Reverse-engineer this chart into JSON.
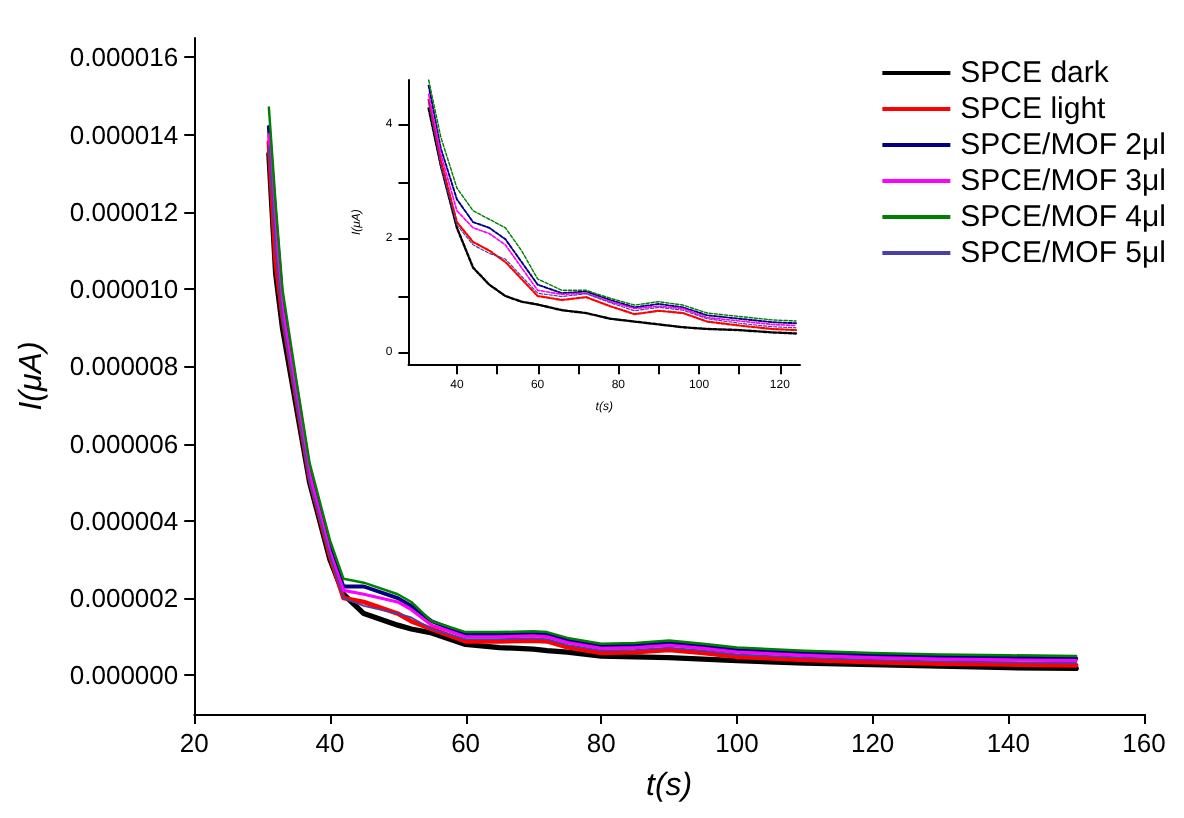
{
  "chart_data": [
    {
      "type": "line",
      "xlabel": "t(s)",
      "ylabel": "I(μA)",
      "legend": "top right",
      "grid": false,
      "x": [
        31,
        32,
        33,
        35,
        37,
        40,
        42,
        45,
        50,
        52,
        55,
        60,
        65,
        70,
        72,
        75,
        80,
        85,
        90,
        95,
        100,
        110,
        120,
        130,
        140,
        150
      ],
      "xlim": [
        20,
        160
      ],
      "xticks": [
        20,
        40,
        60,
        80,
        100,
        120,
        140,
        160
      ],
      "ylim": [
        -1e-06,
        1.65e-05
      ],
      "yticks": [
        {
          "value": 0,
          "label": "0.000000"
        },
        {
          "value": 2e-06,
          "label": "0.000002"
        },
        {
          "value": 4e-06,
          "label": "0.000004"
        },
        {
          "value": 6e-06,
          "label": "0.000006"
        },
        {
          "value": 8e-06,
          "label": "0.000008"
        },
        {
          "value": 1e-05,
          "label": "0.000010"
        },
        {
          "value": 1.2e-05,
          "label": "0.000012"
        },
        {
          "value": 1.4e-05,
          "label": "0.000014"
        },
        {
          "value": 1.6e-05,
          "label": "0.000016"
        }
      ],
      "series": [
        {
          "name": "SPCE dark",
          "color": "#000000",
          "values": [
            1.35e-05,
            1.04e-05,
            9e-06,
            7e-06,
            5e-06,
            3e-06,
            2.1e-06,
            1.6e-06,
            1.3e-06,
            1.2e-06,
            1.1e-06,
            8e-07,
            7.2e-07,
            6.8e-07,
            6.4e-07,
            6e-07,
            5e-07,
            4.8e-07,
            4.6e-07,
            4.2e-07,
            3.8e-07,
            3.2e-07,
            2.8e-07,
            2.4e-07,
            2e-07,
            1.8e-07
          ]
        },
        {
          "name": "SPCE light",
          "color": "#ff0000",
          "values": [
            1.38e-05,
            1.07e-05,
            9.3e-06,
            7.2e-06,
            5.1e-06,
            3.1e-06,
            2e-06,
            1.9e-06,
            1.6e-06,
            1.4e-06,
            1.2e-06,
            8.8e-07,
            8.8e-07,
            9e-07,
            8.8e-07,
            7.3e-07,
            5.8e-07,
            6e-07,
            6.6e-07,
            5.8e-07,
            4.8e-07,
            4e-07,
            3.4e-07,
            3e-07,
            2.8e-07,
            2.6e-07
          ]
        },
        {
          "name": "SPCE/MOF 2μl",
          "color": "#000080",
          "values": [
            1.42e-05,
            1.18e-05,
            9.7e-06,
            7.5e-06,
            5.3e-06,
            3.3e-06,
            2.3e-06,
            2.3e-06,
            2e-06,
            1.8e-06,
            1.4e-06,
            1.06e-06,
            1.06e-06,
            1.08e-06,
            1.06e-06,
            9.1e-07,
            7.6e-07,
            7.8e-07,
            8.4e-07,
            7.6e-07,
            6.6e-07,
            5.8e-07,
            5.2e-07,
            4.8e-07,
            4.6e-07,
            4.4e-07
          ]
        },
        {
          "name": "SPCE/MOF 3μl",
          "color": "#ff00ff",
          "values": [
            1.4e-05,
            1.14e-05,
            9.5e-06,
            7.3e-06,
            5.2e-06,
            3.2e-06,
            2.2e-06,
            2.1e-06,
            1.9e-06,
            1.7e-06,
            1.3e-06,
            1e-06,
            1e-06,
            1.02e-06,
            1e-06,
            8.5e-07,
            7e-07,
            7.2e-07,
            7.8e-07,
            7e-07,
            6e-07,
            5.2e-07,
            4.6e-07,
            4.2e-07,
            4e-07,
            3.8e-07
          ]
        },
        {
          "name": "SPCE/MOF 4μl",
          "color": "#008000",
          "values": [
            1.47e-05,
            1.22e-05,
            1e-05,
            7.7e-06,
            5.5e-06,
            3.5e-06,
            2.5e-06,
            2.4e-06,
            2.1e-06,
            1.9e-06,
            1.4e-06,
            1.12e-06,
            1.12e-06,
            1.14e-06,
            1.12e-06,
            9.7e-07,
            8.2e-07,
            8.4e-07,
            9e-07,
            8.2e-07,
            7.2e-07,
            6.4e-07,
            5.8e-07,
            5.4e-07,
            5.2e-07,
            5e-07
          ]
        },
        {
          "name": "SPCE/MOF 5μl",
          "color": "#4b3fa8",
          "values": [
            1.37e-05,
            1.1e-05,
            9.2e-06,
            7.1e-06,
            5e-06,
            3.1e-06,
            2e-06,
            1.8e-06,
            1.6e-06,
            1.5e-06,
            1.2e-06,
            9.4e-07,
            9.4e-07,
            9.6e-07,
            9.4e-07,
            7.9e-07,
            6.4e-07,
            6.6e-07,
            7.2e-07,
            6.4e-07,
            5.4e-07,
            4.6e-07,
            4e-07,
            3.6e-07,
            3.4e-07,
            3.2e-07
          ]
        }
      ]
    },
    {
      "type": "line",
      "xlabel": "t(s)",
      "ylabel": "I(μA)",
      "legend": false,
      "grid": false,
      "line_style": "dashed",
      "x": [
        33,
        36,
        40,
        44,
        48,
        52,
        56,
        60,
        66,
        72,
        78,
        84,
        90,
        96,
        102,
        110,
        118,
        124
      ],
      "xlim": [
        28,
        125
      ],
      "xticks": [
        40,
        {
          "value": 50,
          "label": null
        },
        60,
        {
          "value": 70,
          "label": null
        },
        80,
        {
          "value": 90,
          "label": null
        },
        100,
        {
          "value": 110,
          "label": null
        },
        120
      ],
      "ylim": [
        -0.2,
        4.8
      ],
      "yticks": [
        0,
        {
          "value": 1,
          "label": null
        },
        2,
        {
          "value": 3,
          "label": null
        },
        4
      ],
      "series": [
        {
          "color": "#000000",
          "values": [
            4.3,
            3.3,
            2.2,
            1.5,
            1.2,
            1.0,
            0.9,
            0.85,
            0.75,
            0.7,
            0.6,
            0.55,
            0.5,
            0.45,
            0.42,
            0.4,
            0.36,
            0.34
          ]
        },
        {
          "color": "#ff0000",
          "values": [
            4.45,
            3.4,
            2.3,
            1.95,
            1.8,
            1.6,
            1.3,
            1.0,
            0.93,
            0.98,
            0.82,
            0.68,
            0.74,
            0.7,
            0.55,
            0.48,
            0.42,
            0.4
          ]
        },
        {
          "color": "#000080",
          "values": [
            4.7,
            3.6,
            2.7,
            2.3,
            2.2,
            2.0,
            1.6,
            1.2,
            1.05,
            1.08,
            0.93,
            0.8,
            0.86,
            0.8,
            0.66,
            0.6,
            0.54,
            0.52
          ]
        },
        {
          "color": "#ff00ff",
          "values": [
            4.55,
            3.5,
            2.5,
            2.2,
            2.1,
            1.9,
            1.5,
            1.1,
            1.03,
            1.05,
            0.9,
            0.78,
            0.82,
            0.78,
            0.62,
            0.56,
            0.5,
            0.48
          ]
        },
        {
          "color": "#008000",
          "values": [
            4.8,
            3.8,
            2.9,
            2.5,
            2.35,
            2.2,
            1.8,
            1.3,
            1.1,
            1.1,
            0.96,
            0.84,
            0.9,
            0.84,
            0.7,
            0.64,
            0.58,
            0.56
          ]
        },
        {
          "color": "#4b3fa8",
          "values": [
            4.4,
            3.3,
            2.25,
            1.9,
            1.75,
            1.65,
            1.35,
            1.05,
            0.99,
            1.04,
            0.88,
            0.74,
            0.8,
            0.75,
            0.6,
            0.52,
            0.46,
            0.44
          ]
        }
      ]
    }
  ]
}
